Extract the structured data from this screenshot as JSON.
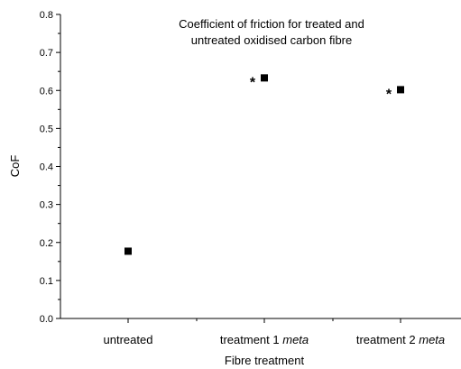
{
  "chart_data": {
    "type": "scatter",
    "title_lines": [
      "Coefficient of friction for treated and",
      "untreated oxidised carbon fibre"
    ],
    "xlabel": "Fibre treatment",
    "ylabel": "CoF",
    "categories": [
      {
        "text": "untreated",
        "emph": ""
      },
      {
        "text": "treatment 1 ",
        "emph": "meta"
      },
      {
        "text": "treatment 2 ",
        "emph": "meta"
      }
    ],
    "values": [
      0.177,
      0.633,
      0.602
    ],
    "annotations": [
      "",
      "*",
      "*"
    ],
    "ylim": [
      0.0,
      0.8
    ],
    "yticks": [
      "0.0",
      "0.1",
      "0.2",
      "0.3",
      "0.4",
      "0.5",
      "0.6",
      "0.7",
      "0.8"
    ],
    "grid": false,
    "legend": "none",
    "marker": "square",
    "color": "#000000"
  }
}
